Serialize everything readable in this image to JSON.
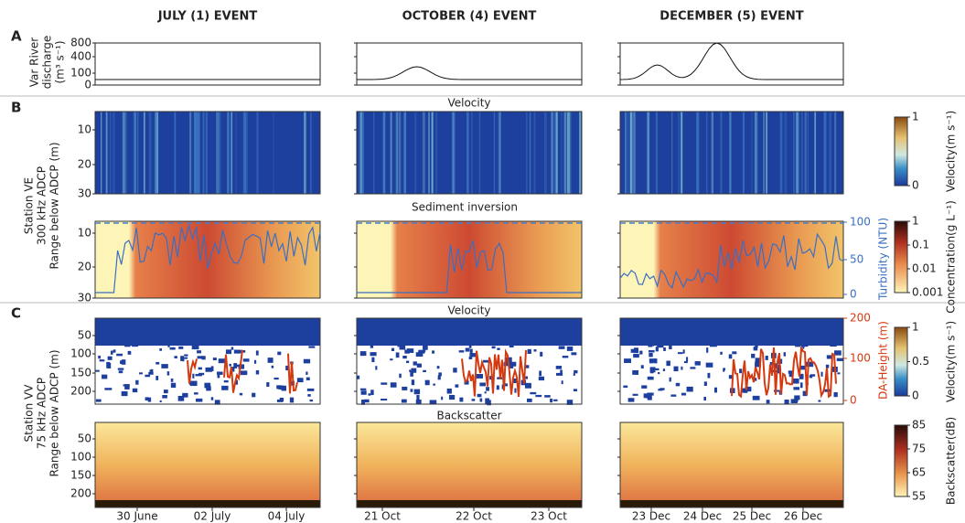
{
  "column_titles": [
    "JULY (1) EVENT",
    "OCTOBER (4) EVENT",
    "DECEMBER (5) EVENT"
  ],
  "panel_a": {
    "label": "A",
    "y_label": [
      "Var River",
      "discharge",
      "(m³ s⁻¹)"
    ],
    "yticks": [
      800,
      400,
      100,
      0
    ]
  },
  "panel_b": {
    "label": "B",
    "y_label": [
      "Station VE",
      "300 kHz ADCP",
      "Range below ADCP (m)"
    ],
    "velocity_title": "Velocity",
    "sediment_title": "Sediment inversion",
    "yticks": [
      10,
      20,
      30
    ],
    "turbidity_label": "Turbidity (NTU)",
    "turbidity_ticks": [
      100,
      50,
      0
    ],
    "velocity_colorbar": {
      "label": "Velocity(m s⁻¹)",
      "ticks": [
        1,
        0
      ]
    },
    "concentration_colorbar": {
      "label": "Concentration(g L⁻¹)",
      "ticks": [
        1,
        0.1,
        0.01,
        0.001
      ]
    }
  },
  "panel_c": {
    "label": "C",
    "y_label": [
      "Station VV",
      "75 kHz ADCP",
      "Range below ADCP (m)"
    ],
    "velocity_title": "Velocity",
    "backscatter_title": "Backscatter",
    "yticks": [
      50,
      100,
      150,
      200
    ],
    "da_label": "DA-Height (m)",
    "da_ticks": [
      200,
      100,
      0
    ],
    "velocity_colorbar": {
      "label": "Velocity(m s⁻¹)",
      "ticks": [
        1,
        0.5,
        0
      ]
    },
    "backscatter_colorbar": {
      "label": "Backscatter(dB)",
      "ticks": [
        85,
        75,
        65,
        55
      ]
    }
  },
  "xticks": [
    [
      "30 June",
      "02 July",
      "04 July"
    ],
    [
      "21 Oct",
      "22 Oct",
      "23 Oct"
    ],
    [
      "23 Dec",
      "24 Dec",
      "25 Dec",
      "26 Dec"
    ]
  ]
}
